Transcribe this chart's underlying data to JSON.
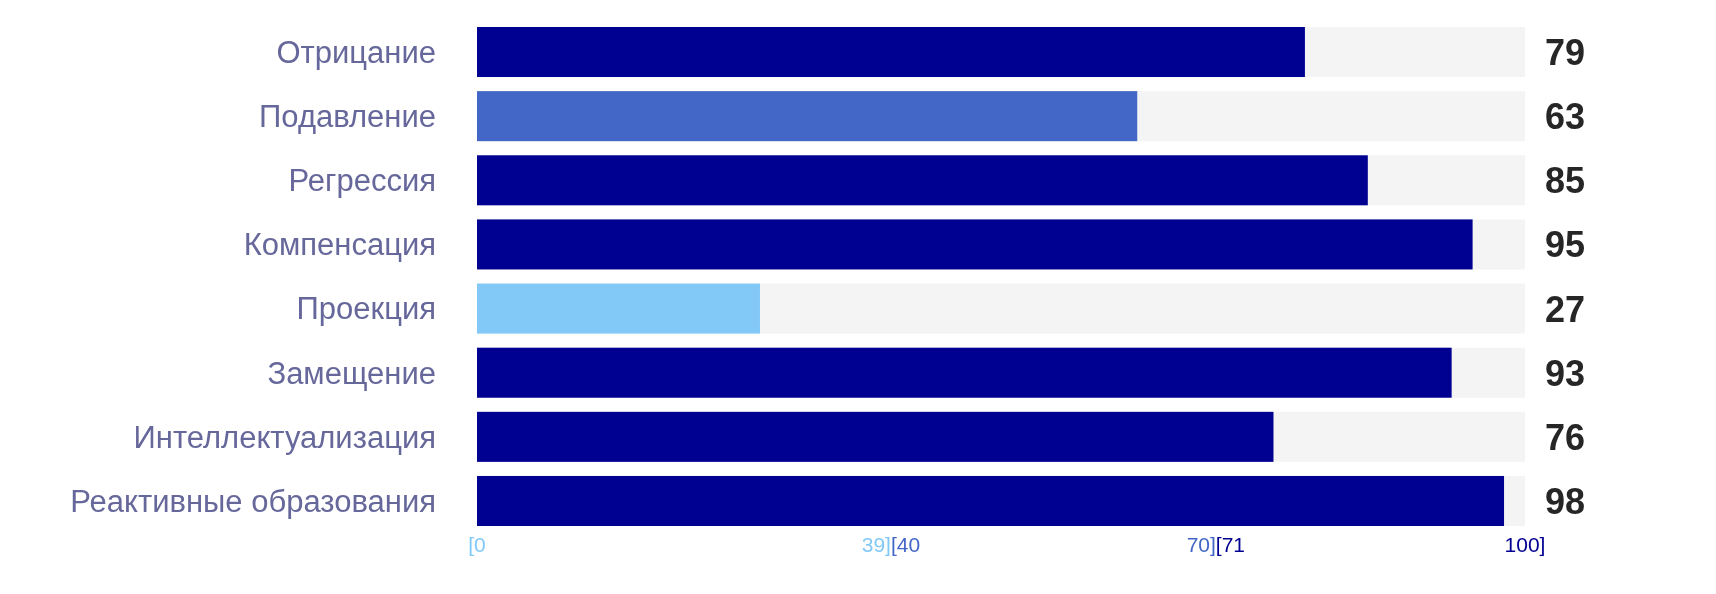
{
  "chart_data": {
    "type": "bar",
    "orientation": "horizontal",
    "categories": [
      "Отрицание",
      "Подавление",
      "Регрессия",
      "Компенсация",
      "Проекция",
      "Замещение",
      "Интеллектуализация",
      "Реактивные образования"
    ],
    "values": [
      79,
      63,
      85,
      95,
      27,
      93,
      76,
      98
    ],
    "colors": [
      "#000091",
      "#4267c6",
      "#000091",
      "#000091",
      "#82c9f8",
      "#000091",
      "#000091",
      "#000091"
    ],
    "xlim": [
      0,
      100
    ],
    "xticks": [
      {
        "value": 0,
        "label": "[0"
      },
      {
        "value": 39,
        "label": "39]"
      },
      {
        "value": 40,
        "label": "[40"
      },
      {
        "value": 70,
        "label": "70]"
      },
      {
        "value": 71,
        "label": "[71"
      },
      {
        "value": 100,
        "label": "100]"
      }
    ],
    "bands": [
      {
        "axis": "x",
        "from": 0,
        "to": 100,
        "color": "#f4f4f4"
      }
    ],
    "data_labels": true
  }
}
